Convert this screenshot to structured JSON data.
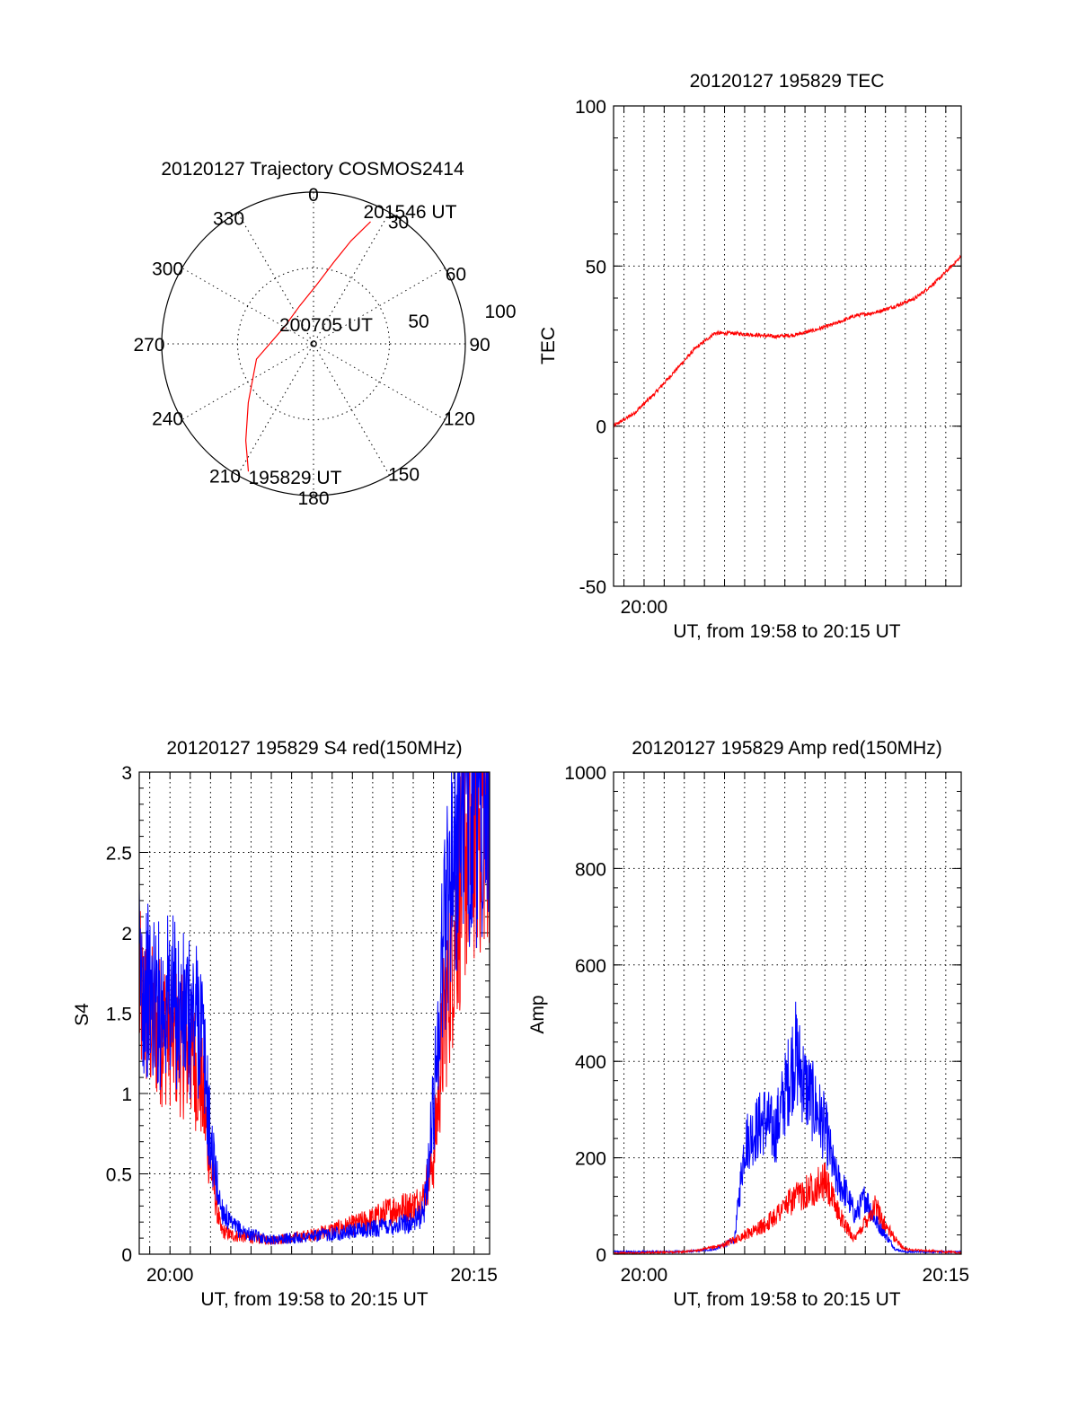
{
  "chart_data": [
    {
      "id": "trajectory",
      "type": "polar",
      "title": "20120127 Trajectory COSMOS2414",
      "angle_labels": [
        "0",
        "30",
        "60",
        "90",
        "120",
        "150",
        "180",
        "210",
        "240",
        "270",
        "300",
        "330"
      ],
      "radius_labels": [
        "50",
        "100"
      ],
      "series": [
        {
          "color": "#ff0000",
          "points": [
            {
              "az": 207,
              "el": 5
            },
            {
              "az": 215,
              "el": 20
            },
            {
              "az": 228,
              "el": 38
            },
            {
              "az": 255,
              "el": 55
            },
            {
              "az": 300,
              "el": 70
            },
            {
              "az": 340,
              "el": 66
            },
            {
              "az": 3,
              "el": 55
            },
            {
              "az": 14,
              "el": 40
            },
            {
              "az": 20,
              "el": 25
            },
            {
              "az": 25,
              "el": 10
            }
          ]
        }
      ],
      "annotations": [
        {
          "text": "195829 UT",
          "az": 207,
          "el": 5
        },
        {
          "text": "200705 UT",
          "az": 0,
          "el": 90
        },
        {
          "text": "201546 UT",
          "az": 25,
          "el": 10
        }
      ]
    },
    {
      "id": "tec",
      "type": "line",
      "title": "20120127 195829 TEC",
      "xlabel": "UT, from 19:58 to 20:15 UT",
      "ylabel": "TEC",
      "x_range": [
        "19:58:29",
        "20:15:46"
      ],
      "ylim": [
        -50,
        100
      ],
      "yticks": [
        -50,
        0,
        50,
        100
      ],
      "xtick_labels": [
        {
          "time": "20:00",
          "label": "20:00"
        }
      ],
      "grid": true,
      "series": [
        {
          "color": "#ff0000",
          "x": [
            "19:58:29",
            "19:59:30",
            "20:00:30",
            "20:01:30",
            "20:02:30",
            "20:03:30",
            "20:04:30",
            "20:05:30",
            "20:06:30",
            "20:07:30",
            "20:08:30",
            "20:09:30",
            "20:10:30",
            "20:11:30",
            "20:12:30",
            "20:13:30",
            "20:14:30",
            "20:15:46"
          ],
          "y": [
            0,
            4,
            10,
            17,
            24,
            29,
            29,
            28.5,
            28,
            28.5,
            30,
            32,
            34.5,
            35.5,
            37.5,
            40,
            45,
            53
          ]
        }
      ]
    },
    {
      "id": "s4",
      "type": "line",
      "title": "20120127 195829 S4 red(150MHz)",
      "xlabel": "UT, from 19:58 to 20:15 UT",
      "ylabel": "S4",
      "x_range": [
        "19:58:29",
        "20:15:46"
      ],
      "ylim": [
        0,
        3
      ],
      "yticks": [
        0,
        0.5,
        1,
        1.5,
        2,
        2.5,
        3
      ],
      "xtick_labels": [
        {
          "time": "20:00",
          "label": "20:00"
        },
        {
          "time": "20:15",
          "label": "20:15"
        }
      ],
      "grid": true,
      "series": [
        {
          "color": "#ff0000",
          "x": [
            "19:58:29",
            "19:59:00",
            "19:59:30",
            "20:00:00",
            "20:00:30",
            "20:01:00",
            "20:01:30",
            "20:02:00",
            "20:02:30",
            "20:03:00",
            "20:04:00",
            "20:05:00",
            "20:06:00",
            "20:07:00",
            "20:08:00",
            "20:09:00",
            "20:10:00",
            "20:11:00",
            "20:12:00",
            "20:12:30",
            "20:13:00",
            "20:13:30",
            "20:14:00",
            "20:14:30",
            "20:15:00",
            "20:15:46"
          ],
          "y": [
            1.6,
            1.45,
            1.4,
            1.4,
            1.3,
            1.25,
            1.1,
            0.55,
            0.15,
            0.12,
            0.1,
            0.09,
            0.1,
            0.12,
            0.15,
            0.18,
            0.22,
            0.28,
            0.3,
            0.35,
            0.6,
            1.4,
            2.0,
            2.5,
            2.7,
            2.9
          ]
        },
        {
          "color": "#0000ff",
          "x": [
            "19:58:29",
            "19:59:00",
            "19:59:30",
            "20:00:00",
            "20:00:30",
            "20:01:00",
            "20:01:30",
            "20:02:00",
            "20:02:30",
            "20:03:00",
            "20:04:00",
            "20:05:00",
            "20:06:00",
            "20:07:00",
            "20:08:00",
            "20:09:00",
            "20:10:00",
            "20:11:00",
            "20:12:00",
            "20:12:30",
            "20:13:00",
            "20:13:30",
            "20:14:00",
            "20:14:30",
            "20:15:00",
            "20:15:46"
          ],
          "y": [
            1.75,
            1.6,
            1.55,
            1.6,
            1.5,
            1.45,
            1.5,
            0.7,
            0.3,
            0.18,
            0.12,
            0.09,
            0.1,
            0.11,
            0.13,
            0.14,
            0.16,
            0.18,
            0.2,
            0.25,
            0.9,
            2.0,
            2.6,
            2.9,
            2.9,
            2.9
          ]
        }
      ]
    },
    {
      "id": "amp",
      "type": "line",
      "title": "20120127 195829 Amp red(150MHz)",
      "xlabel": "UT, from 19:58 to 20:15 UT",
      "ylabel": "Amp",
      "x_range": [
        "19:58:29",
        "20:15:46"
      ],
      "ylim": [
        0,
        1000
      ],
      "yticks": [
        0,
        200,
        400,
        600,
        800,
        1000
      ],
      "xtick_labels": [
        {
          "time": "20:00",
          "label": "20:00"
        },
        {
          "time": "20:15",
          "label": "20:15"
        }
      ],
      "grid": true,
      "series": [
        {
          "color": "#0000ff",
          "x": [
            "19:58:29",
            "20:00:00",
            "20:02:00",
            "20:03:30",
            "20:04:30",
            "20:05:00",
            "20:06:00",
            "20:06:30",
            "20:07:00",
            "20:07:30",
            "20:08:00",
            "20:09:00",
            "20:09:30",
            "20:10:00",
            "20:10:30",
            "20:11:00",
            "20:11:30",
            "20:12:00",
            "20:12:30",
            "20:13:00",
            "20:15:46"
          ],
          "y": [
            5,
            5,
            5,
            10,
            30,
            230,
            280,
            250,
            330,
            420,
            350,
            260,
            160,
            130,
            80,
            120,
            70,
            40,
            10,
            5,
            5
          ]
        },
        {
          "color": "#ff0000",
          "x": [
            "19:58:29",
            "20:00:00",
            "20:02:00",
            "20:03:00",
            "20:04:00",
            "20:05:00",
            "20:06:00",
            "20:07:00",
            "20:08:00",
            "20:09:00",
            "20:09:30",
            "20:10:00",
            "20:10:30",
            "20:11:00",
            "20:11:30",
            "20:12:00",
            "20:12:30",
            "20:13:00",
            "20:15:46"
          ],
          "y": [
            2,
            3,
            5,
            10,
            20,
            40,
            60,
            100,
            130,
            150,
            100,
            60,
            30,
            70,
            100,
            60,
            30,
            10,
            3
          ]
        }
      ]
    }
  ]
}
